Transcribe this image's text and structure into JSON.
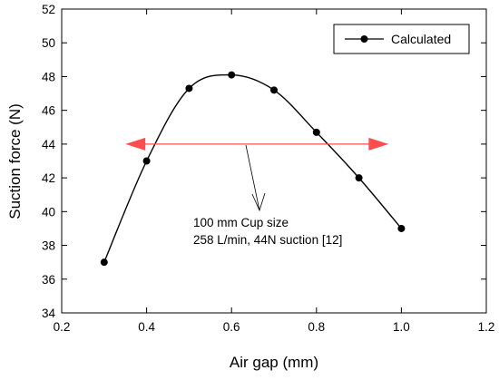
{
  "chart_data": {
    "type": "line",
    "title": "",
    "xlabel": "Air gap (mm)",
    "ylabel": "Suction force (N)",
    "xlim": [
      0.2,
      1.2
    ],
    "ylim": [
      34,
      52
    ],
    "xticks": [
      "0.2",
      "0.4",
      "0.6",
      "0.8",
      "1.0",
      "1.2"
    ],
    "yticks": [
      "34",
      "36",
      "38",
      "40",
      "42",
      "44",
      "46",
      "48",
      "50",
      "52"
    ],
    "grid": false,
    "legend_position": "top-right",
    "series": [
      {
        "name": "Calculated",
        "color": "#000000",
        "marker": "circle",
        "x": [
          0.3,
          0.4,
          0.5,
          0.6,
          0.7,
          0.8,
          0.9,
          1.0
        ],
        "y": [
          37.0,
          43.0,
          47.3,
          48.1,
          47.2,
          44.7,
          42.0,
          39.0
        ]
      }
    ],
    "annotations": {
      "text_line1": "100 mm Cup size",
      "text_line2": "258 L/min, 44N suction [12]",
      "reference_arrow": {
        "y": 44.0,
        "x_start": 0.35,
        "x_end": 0.97,
        "color": "#ff4d4d"
      }
    }
  }
}
